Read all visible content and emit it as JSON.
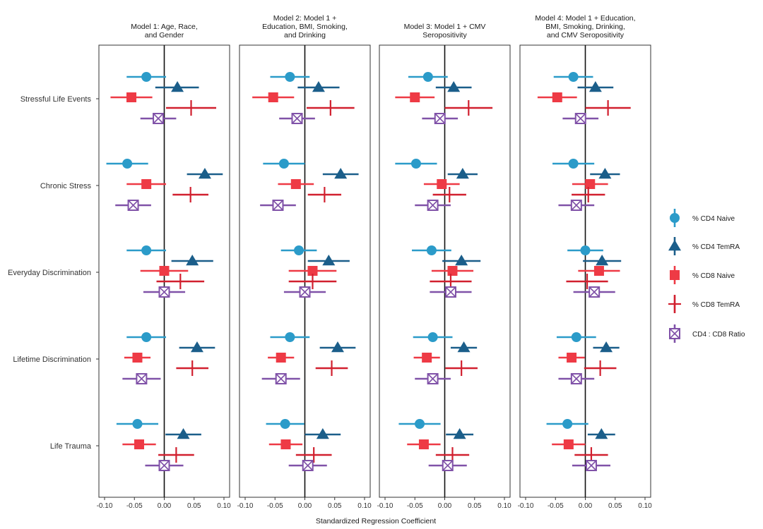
{
  "chart_data": {
    "type": "scatter",
    "subtype": "forest-plot",
    "xlabel": "Standardized Regression Coefficient",
    "xlim": [
      -0.1,
      0.1
    ],
    "xticks": [
      -0.1,
      -0.05,
      0.0,
      0.05,
      0.1
    ],
    "xtick_labels": [
      "-0.10",
      "-0.05",
      "0.00",
      "0.05",
      "0.10"
    ],
    "zero_line": true,
    "legend_position": "right",
    "categories": [
      "Stressful Life Events",
      "Chronic Stress",
      "Everyday Discrimination",
      "Lifetime Discrimination",
      "Life Trauma"
    ],
    "series": [
      {
        "name": "% CD4 Naive",
        "color": "#2b9bc9",
        "marker": "circle"
      },
      {
        "name": "% CD4 TemRA",
        "color": "#1b5e8a",
        "marker": "triangle"
      },
      {
        "name": "% CD8 Naive",
        "color": "#ee3a45",
        "marker": "square"
      },
      {
        "name": "% CD8 TemRA",
        "color": "#d1202f",
        "marker": "plus"
      },
      {
        "name": "CD4 : CD8 Ratio",
        "color": "#8052a8",
        "marker": "boxed-x"
      }
    ],
    "panels": [
      {
        "title": [
          "Model 1: Age, Race,",
          "and Gender"
        ],
        "estimates": [
          [
            [
              -0.03,
              -0.063,
              0.003
            ],
            [
              0.022,
              -0.015,
              0.058
            ],
            [
              -0.055,
              -0.09,
              -0.02
            ],
            [
              0.045,
              0.003,
              0.087
            ],
            [
              -0.01,
              -0.04,
              0.02
            ]
          ],
          [
            [
              -0.062,
              -0.097,
              -0.027
            ],
            [
              0.068,
              0.038,
              0.098
            ],
            [
              -0.03,
              -0.063,
              0.003
            ],
            [
              0.044,
              0.014,
              0.074
            ],
            [
              -0.052,
              -0.082,
              -0.022
            ]
          ],
          [
            [
              -0.03,
              -0.063,
              0.003
            ],
            [
              0.047,
              0.012,
              0.082
            ],
            [
              0.0,
              -0.04,
              0.04
            ],
            [
              0.027,
              -0.013,
              0.067
            ],
            [
              0.0,
              -0.035,
              0.035
            ]
          ],
          [
            [
              -0.03,
              -0.063,
              0.003
            ],
            [
              0.055,
              0.025,
              0.085
            ],
            [
              -0.045,
              -0.067,
              -0.023
            ],
            [
              0.047,
              0.02,
              0.074
            ],
            [
              -0.038,
              -0.07,
              -0.006
            ]
          ],
          [
            [
              -0.045,
              -0.08,
              -0.01
            ],
            [
              0.032,
              0.002,
              0.062
            ],
            [
              -0.042,
              -0.07,
              -0.014
            ],
            [
              0.02,
              -0.01,
              0.05
            ],
            [
              0.0,
              -0.032,
              0.032
            ]
          ]
        ]
      },
      {
        "title": [
          "Model 2: Model 1 +",
          "Education, BMI, Smoking,",
          "and Drinking"
        ],
        "estimates": [
          [
            [
              -0.025,
              -0.058,
              0.008
            ],
            [
              0.023,
              -0.012,
              0.058
            ],
            [
              -0.053,
              -0.088,
              -0.018
            ],
            [
              0.043,
              0.003,
              0.083
            ],
            [
              -0.013,
              -0.043,
              0.017
            ]
          ],
          [
            [
              -0.035,
              -0.07,
              0.0
            ],
            [
              0.06,
              0.03,
              0.09
            ],
            [
              -0.015,
              -0.045,
              0.015
            ],
            [
              0.033,
              0.005,
              0.061
            ],
            [
              -0.045,
              -0.075,
              -0.015
            ]
          ],
          [
            [
              -0.01,
              -0.04,
              0.02
            ],
            [
              0.04,
              0.005,
              0.075
            ],
            [
              0.013,
              -0.027,
              0.053
            ],
            [
              0.013,
              -0.027,
              0.053
            ],
            [
              0.0,
              -0.035,
              0.035
            ]
          ],
          [
            [
              -0.025,
              -0.058,
              0.008
            ],
            [
              0.055,
              0.025,
              0.085
            ],
            [
              -0.04,
              -0.062,
              -0.018
            ],
            [
              0.045,
              0.018,
              0.072
            ],
            [
              -0.04,
              -0.072,
              -0.008
            ]
          ],
          [
            [
              -0.033,
              -0.065,
              -0.001
            ],
            [
              0.03,
              0.0,
              0.06
            ],
            [
              -0.032,
              -0.06,
              -0.004
            ],
            [
              0.015,
              -0.015,
              0.045
            ],
            [
              0.005,
              -0.027,
              0.037
            ]
          ]
        ]
      },
      {
        "title": [
          "Model 3: Model 1 + CMV",
          "Seropositivity"
        ],
        "estimates": [
          [
            [
              -0.028,
              -0.061,
              0.005
            ],
            [
              0.015,
              -0.015,
              0.045
            ],
            [
              -0.05,
              -0.083,
              -0.017
            ],
            [
              0.04,
              0.0,
              0.08
            ],
            [
              -0.008,
              -0.038,
              0.022
            ]
          ],
          [
            [
              -0.048,
              -0.083,
              -0.013
            ],
            [
              0.03,
              0.005,
              0.055
            ],
            [
              -0.005,
              -0.035,
              0.025
            ],
            [
              0.008,
              -0.02,
              0.036
            ],
            [
              -0.02,
              -0.05,
              0.01
            ]
          ],
          [
            [
              -0.022,
              -0.055,
              0.011
            ],
            [
              0.028,
              -0.004,
              0.06
            ],
            [
              0.013,
              -0.022,
              0.048
            ],
            [
              0.01,
              -0.025,
              0.045
            ],
            [
              0.01,
              -0.025,
              0.045
            ]
          ],
          [
            [
              -0.02,
              -0.053,
              0.013
            ],
            [
              0.032,
              0.01,
              0.054
            ],
            [
              -0.03,
              -0.052,
              -0.008
            ],
            [
              0.028,
              0.001,
              0.055
            ],
            [
              -0.02,
              -0.05,
              0.01
            ]
          ],
          [
            [
              -0.042,
              -0.077,
              -0.007
            ],
            [
              0.025,
              0.002,
              0.048
            ],
            [
              -0.035,
              -0.063,
              -0.007
            ],
            [
              0.013,
              -0.015,
              0.041
            ],
            [
              0.005,
              -0.027,
              0.037
            ]
          ]
        ]
      },
      {
        "title": [
          "Model 4: Model 1 + Education,",
          "BMI, Smoking, Drinking,",
          "and CMV Seropositivity"
        ],
        "estimates": [
          [
            [
              -0.02,
              -0.053,
              0.013
            ],
            [
              0.017,
              -0.013,
              0.047
            ],
            [
              -0.047,
              -0.08,
              -0.014
            ],
            [
              0.038,
              0.0,
              0.076
            ],
            [
              -0.008,
              -0.038,
              0.022
            ]
          ],
          [
            [
              -0.02,
              -0.055,
              0.015
            ],
            [
              0.033,
              0.008,
              0.058
            ],
            [
              0.008,
              -0.022,
              0.038
            ],
            [
              0.005,
              -0.023,
              0.033
            ],
            [
              -0.015,
              -0.045,
              0.015
            ]
          ],
          [
            [
              0.0,
              -0.03,
              0.03
            ],
            [
              0.028,
              -0.004,
              0.06
            ],
            [
              0.023,
              -0.012,
              0.058
            ],
            [
              0.003,
              -0.032,
              0.038
            ],
            [
              0.015,
              -0.02,
              0.05
            ]
          ],
          [
            [
              -0.015,
              -0.048,
              0.018
            ],
            [
              0.035,
              0.013,
              0.057
            ],
            [
              -0.023,
              -0.045,
              -0.001
            ],
            [
              0.025,
              -0.002,
              0.052
            ],
            [
              -0.015,
              -0.045,
              0.015
            ]
          ],
          [
            [
              -0.03,
              -0.065,
              0.005
            ],
            [
              0.027,
              0.004,
              0.05
            ],
            [
              -0.028,
              -0.056,
              0.0
            ],
            [
              0.01,
              -0.018,
              0.038
            ],
            [
              0.01,
              -0.022,
              0.042
            ]
          ]
        ]
      }
    ]
  }
}
